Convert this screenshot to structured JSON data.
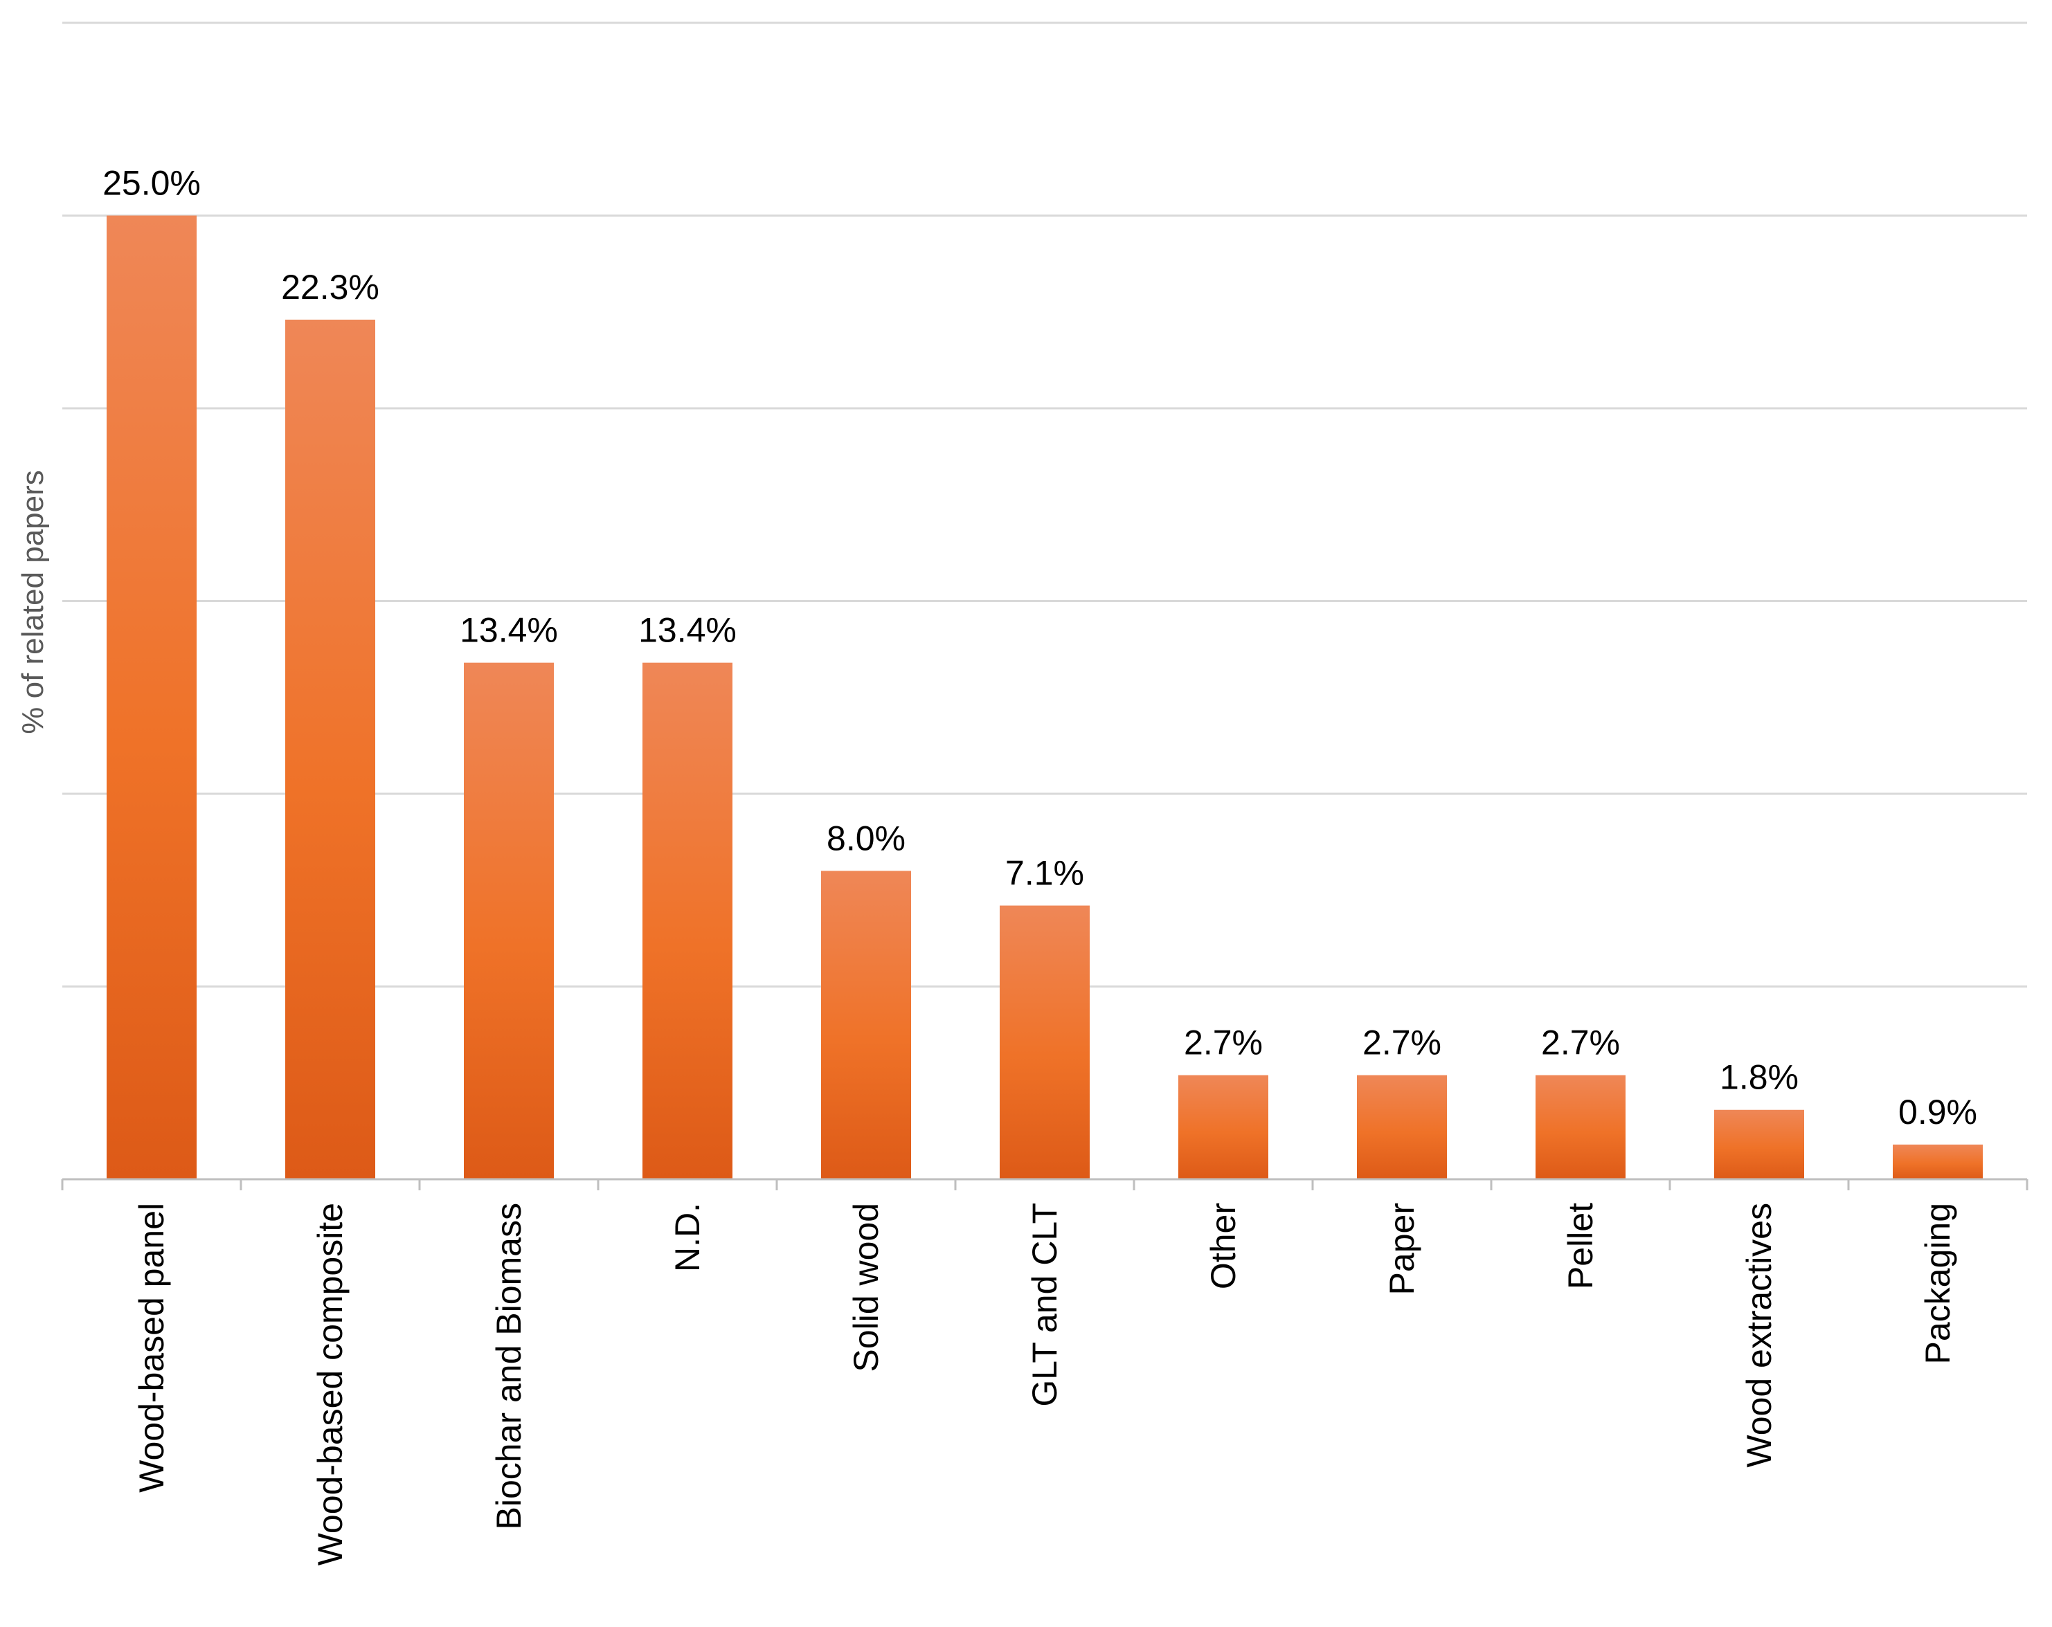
{
  "chart_data": {
    "type": "bar",
    "ylabel": "% of related papers",
    "categories": [
      "Wood-based panel",
      "Wood-based composite",
      "Biochar and Biomass",
      "N.D.",
      "Solid wood",
      "GLT and CLT",
      "Other",
      "Paper",
      "Pellet",
      "Wood extractives",
      "Packaging"
    ],
    "values": [
      25.0,
      22.3,
      13.4,
      13.4,
      8.0,
      7.1,
      2.7,
      2.7,
      2.7,
      1.8,
      0.9
    ],
    "data_labels": [
      "25.0%",
      "22.3%",
      "13.4%",
      "13.4%",
      "8.0%",
      "7.1%",
      "2.7%",
      "2.7%",
      "2.7%",
      "1.8%",
      "0.9%"
    ],
    "ylim": [
      0,
      30
    ],
    "gridlines": [
      5,
      10,
      15,
      20,
      25,
      30
    ],
    "grid": true,
    "colors": {
      "bar_top": "#ef8757",
      "bar_mid": "#ef7228",
      "bar_bottom": "#dd5a17",
      "grid": "#d9d9d9",
      "axis": "#bfbfbf",
      "text": "#000000",
      "ylabel": "#595959"
    }
  }
}
